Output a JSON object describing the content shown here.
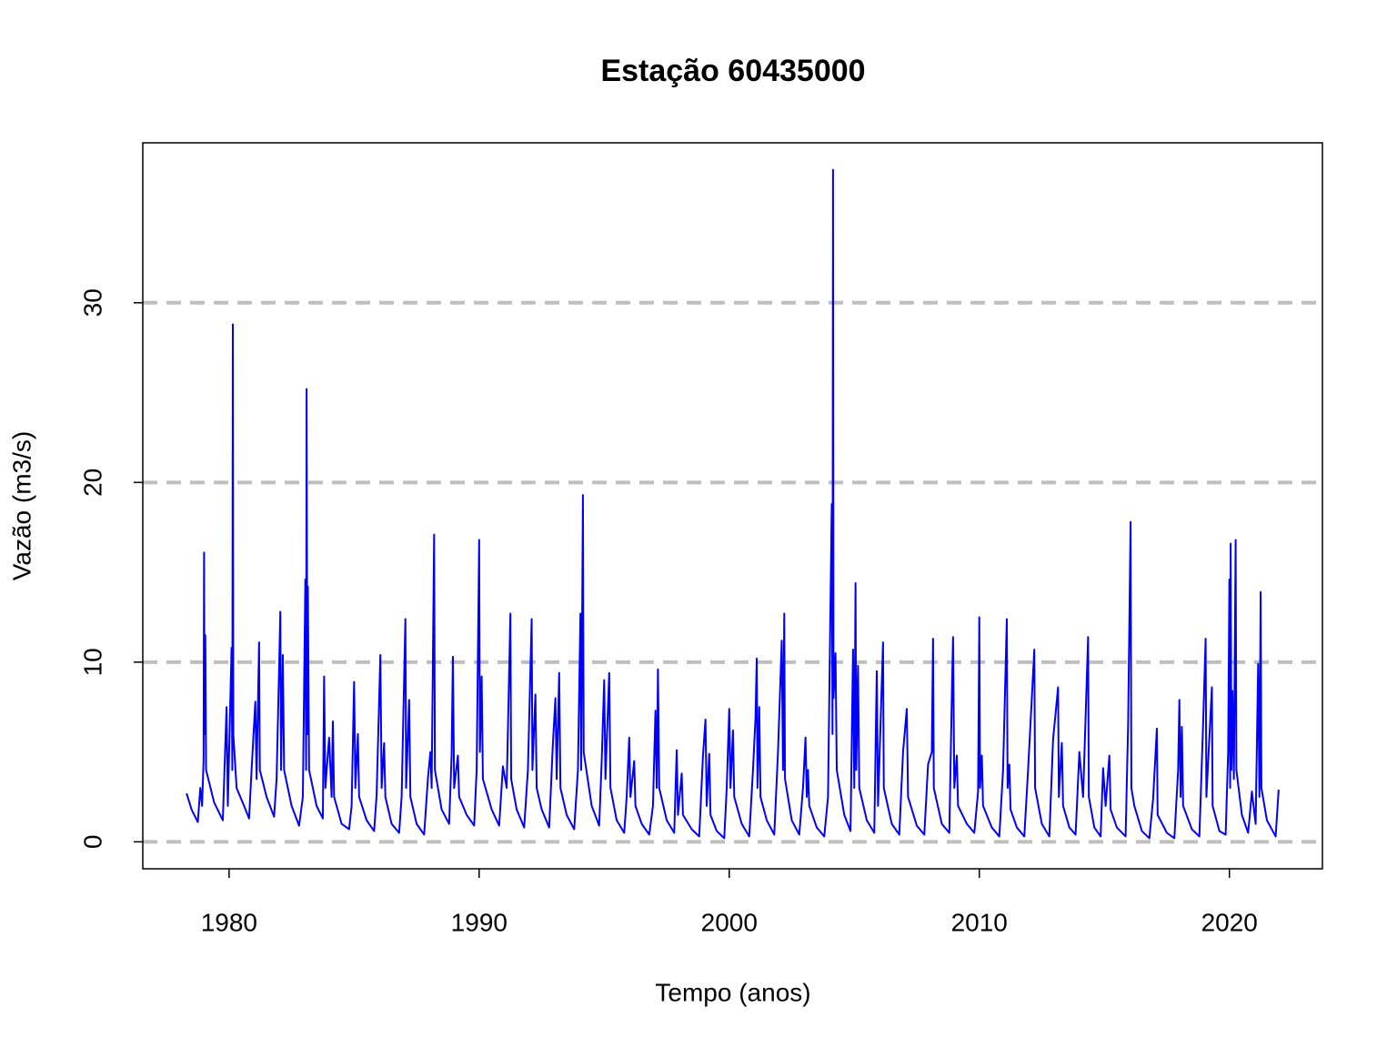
{
  "chart_data": {
    "type": "line",
    "title": "Estação 60435000",
    "x_label": "Tempo (anos)",
    "y_label": "Vazão (m3/s)",
    "color": "blue",
    "grid": true,
    "xlim": [
      1976.55,
      2023.72
    ],
    "ylim": [
      -1.5,
      38.9
    ],
    "xticks": [
      1980,
      1990,
      2000,
      2010,
      2020
    ],
    "yticks": [
      0,
      10,
      20,
      30
    ],
    "x": [
      1978.3,
      1978.5,
      1978.75,
      1978.85,
      1978.92,
      1978.98,
      1979.0,
      1979.02,
      1979.05,
      1979.08,
      1979.4,
      1979.75,
      1979.9,
      1979.95,
      1980.1,
      1980.13,
      1980.15,
      1980.17,
      1980.3,
      1980.6,
      1980.8,
      1980.9,
      1981.05,
      1981.1,
      1981.2,
      1981.23,
      1981.5,
      1981.8,
      1981.9,
      1982.0,
      1982.05,
      1982.08,
      1982.15,
      1982.2,
      1982.5,
      1982.8,
      1982.95,
      1983.05,
      1983.08,
      1983.1,
      1983.13,
      1983.15,
      1983.2,
      1983.5,
      1983.75,
      1983.8,
      1983.85,
      1984.0,
      1984.1,
      1984.15,
      1984.2,
      1984.5,
      1984.8,
      1984.9,
      1985.0,
      1985.05,
      1985.15,
      1985.2,
      1985.5,
      1985.8,
      1985.9,
      1986.05,
      1986.1,
      1986.2,
      1986.25,
      1986.5,
      1986.8,
      1986.9,
      1987.05,
      1987.08,
      1987.2,
      1987.25,
      1987.5,
      1987.8,
      1987.95,
      1988.05,
      1988.1,
      1988.2,
      1988.23,
      1988.5,
      1988.8,
      1988.9,
      1988.95,
      1989.0,
      1989.15,
      1989.2,
      1989.5,
      1989.8,
      1989.9,
      1990.0,
      1990.03,
      1990.1,
      1990.15,
      1990.5,
      1990.8,
      1990.95,
      1991.1,
      1991.25,
      1991.28,
      1991.5,
      1991.8,
      1991.95,
      1992.1,
      1992.13,
      1992.25,
      1992.3,
      1992.5,
      1992.8,
      1992.95,
      1993.05,
      1993.1,
      1993.2,
      1993.25,
      1993.5,
      1993.8,
      1993.95,
      1994.05,
      1994.08,
      1994.15,
      1994.18,
      1994.5,
      1994.8,
      1994.9,
      1995.0,
      1995.05,
      1995.2,
      1995.25,
      1995.5,
      1995.8,
      1995.9,
      1996.0,
      1996.05,
      1996.2,
      1996.25,
      1996.5,
      1996.8,
      1996.95,
      1997.05,
      1997.1,
      1997.15,
      1997.2,
      1997.5,
      1997.8,
      1997.9,
      1997.95,
      1998.1,
      1998.15,
      1998.5,
      1998.8,
      1998.95,
      1999.05,
      1999.1,
      1999.2,
      1999.25,
      1999.5,
      1999.8,
      1999.9,
      2000.0,
      2000.05,
      2000.15,
      2000.2,
      2000.5,
      2000.8,
      2000.95,
      2001.05,
      2001.1,
      2001.13,
      2001.2,
      2001.25,
      2001.5,
      2001.8,
      2001.95,
      2002.1,
      2002.15,
      2002.2,
      2002.23,
      2002.5,
      2002.8,
      2002.95,
      2003.05,
      2003.1,
      2003.15,
      2003.2,
      2003.5,
      2003.8,
      2003.95,
      2004.1,
      2004.13,
      2004.15,
      2004.17,
      2004.25,
      2004.3,
      2004.6,
      2004.85,
      2004.95,
      2005.0,
      2005.05,
      2005.08,
      2005.15,
      2005.2,
      2005.5,
      2005.8,
      2005.9,
      2005.95,
      2006.15,
      2006.18,
      2006.5,
      2006.8,
      2006.95,
      2007.1,
      2007.15,
      2007.5,
      2007.8,
      2007.95,
      2008.1,
      2008.15,
      2008.18,
      2008.5,
      2008.8,
      2008.9,
      2008.95,
      2009.0,
      2009.1,
      2009.15,
      2009.5,
      2009.8,
      2009.95,
      2010.0,
      2010.03,
      2010.1,
      2010.15,
      2010.5,
      2010.8,
      2010.95,
      2011.1,
      2011.13,
      2011.2,
      2011.25,
      2011.5,
      2011.8,
      2011.95,
      2012.2,
      2012.23,
      2012.5,
      2012.8,
      2012.95,
      2013.15,
      2013.18,
      2013.3,
      2013.35,
      2013.6,
      2013.85,
      2014.0,
      2014.15,
      2014.35,
      2014.38,
      2014.6,
      2014.85,
      2014.95,
      2015.05,
      2015.2,
      2015.25,
      2015.5,
      2015.85,
      2015.95,
      2016.05,
      2016.08,
      2016.2,
      2016.5,
      2016.8,
      2016.95,
      2017.1,
      2017.13,
      2017.5,
      2017.8,
      2017.95,
      2018.0,
      2018.05,
      2018.1,
      2018.15,
      2018.5,
      2018.8,
      2018.95,
      2019.05,
      2019.08,
      2019.3,
      2019.33,
      2019.6,
      2019.85,
      2019.95,
      2020.0,
      2020.03,
      2020.05,
      2020.08,
      2020.12,
      2020.18,
      2020.25,
      2020.28,
      2020.5,
      2020.75,
      2020.9,
      2021.05,
      2021.15,
      2021.2,
      2021.25,
      2021.28,
      2021.5,
      2021.85,
      2021.97
    ],
    "values": [
      2.7,
      1.8,
      1.1,
      3.0,
      2.0,
      4.5,
      16.1,
      6.0,
      11.5,
      4.0,
      2.2,
      1.2,
      7.5,
      2.0,
      10.8,
      4.0,
      28.8,
      6.0,
      3.0,
      2.0,
      1.3,
      4.0,
      7.8,
      3.5,
      11.1,
      4.0,
      2.5,
      1.4,
      3.5,
      9.6,
      12.8,
      4.0,
      10.4,
      4.0,
      2.0,
      0.9,
      2.5,
      14.6,
      4.0,
      25.2,
      6.0,
      14.2,
      4.0,
      2.0,
      1.3,
      9.2,
      3.0,
      5.8,
      2.5,
      6.7,
      2.5,
      1.0,
      0.7,
      2.0,
      8.9,
      3.0,
      6.0,
      2.5,
      1.2,
      0.6,
      2.6,
      10.4,
      3.0,
      5.5,
      2.5,
      1.0,
      0.5,
      2.5,
      12.4,
      3.0,
      7.9,
      2.5,
      1.0,
      0.4,
      3.5,
      5.0,
      3.0,
      17.1,
      4.0,
      1.8,
      1.0,
      4.9,
      10.3,
      3.0,
      4.8,
      2.5,
      1.5,
      0.9,
      4.0,
      16.8,
      5.0,
      9.2,
      3.5,
      1.8,
      0.9,
      4.2,
      3.0,
      12.7,
      3.5,
      1.8,
      0.8,
      4.0,
      12.4,
      4.0,
      8.2,
      3.0,
      1.8,
      0.8,
      5.5,
      8.0,
      3.5,
      9.4,
      3.0,
      1.5,
      0.7,
      4.0,
      12.7,
      4.0,
      19.3,
      5.0,
      2.0,
      0.9,
      4.5,
      9.0,
      3.5,
      9.4,
      3.0,
      1.2,
      0.5,
      2.5,
      5.8,
      2.5,
      4.5,
      2.0,
      1.0,
      0.4,
      2.0,
      7.3,
      3.0,
      9.6,
      3.0,
      1.2,
      0.5,
      5.1,
      1.5,
      3.8,
      1.5,
      0.7,
      0.3,
      4.8,
      6.8,
      2.0,
      4.9,
      1.5,
      0.6,
      0.2,
      3.0,
      7.4,
      3.0,
      6.2,
      2.5,
      1.0,
      0.3,
      4.0,
      6.9,
      10.2,
      3.0,
      7.5,
      2.5,
      1.2,
      0.4,
      5.0,
      11.2,
      4.0,
      12.7,
      3.5,
      1.2,
      0.4,
      3.0,
      5.8,
      2.5,
      4.0,
      2.0,
      0.8,
      0.3,
      2.5,
      18.8,
      6.0,
      37.4,
      8.0,
      10.5,
      4.0,
      1.5,
      0.6,
      10.7,
      3.0,
      14.4,
      4.0,
      9.8,
      3.0,
      1.2,
      0.5,
      9.5,
      2.0,
      11.1,
      3.0,
      1.0,
      0.4,
      5.0,
      7.4,
      2.5,
      0.9,
      0.4,
      4.3,
      5.0,
      11.3,
      3.0,
      1.0,
      0.5,
      8.0,
      11.4,
      3.0,
      4.8,
      2.0,
      1.0,
      0.5,
      2.8,
      12.5,
      3.0,
      4.8,
      2.0,
      0.8,
      0.3,
      4.0,
      12.4,
      3.0,
      4.3,
      1.8,
      0.8,
      0.3,
      4.0,
      10.7,
      3.0,
      1.0,
      0.3,
      5.7,
      8.6,
      2.5,
      5.5,
      2.0,
      0.8,
      0.4,
      5.0,
      2.5,
      11.4,
      2.5,
      0.8,
      0.3,
      4.1,
      2.0,
      4.8,
      1.8,
      0.8,
      0.3,
      6.5,
      17.8,
      3.0,
      2.0,
      0.6,
      0.2,
      2.4,
      6.3,
      1.5,
      0.5,
      0.2,
      4.0,
      7.9,
      2.5,
      6.4,
      2.0,
      0.7,
      0.3,
      6.6,
      11.3,
      2.5,
      8.6,
      2.0,
      0.6,
      0.4,
      5.0,
      14.6,
      3.0,
      16.6,
      4.0,
      8.4,
      3.5,
      16.8,
      4.0,
      1.5,
      0.5,
      2.8,
      1.0,
      9.9,
      2.5,
      13.9,
      3.0,
      1.2,
      0.3,
      2.9
    ]
  }
}
